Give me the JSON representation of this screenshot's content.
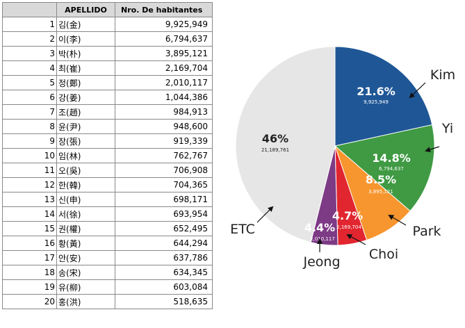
{
  "table": {
    "headers": {
      "rank": "",
      "surname": "APELLIDO",
      "population": "Nro. De habitantes"
    },
    "rows": [
      {
        "rank": "1",
        "surname": "김(金)",
        "population": "9,925,949"
      },
      {
        "rank": "2",
        "surname": "이(李)",
        "population": "6,794,637"
      },
      {
        "rank": "3",
        "surname": "박(朴)",
        "population": "3,895,121"
      },
      {
        "rank": "4",
        "surname": "최(崔)",
        "population": "2,169,704"
      },
      {
        "rank": "5",
        "surname": "정(鄭)",
        "population": "2,010,117"
      },
      {
        "rank": "6",
        "surname": "강(姜)",
        "population": "1,044,386"
      },
      {
        "rank": "7",
        "surname": "조(趙)",
        "population": "984,913"
      },
      {
        "rank": "8",
        "surname": "윤(尹)",
        "population": "948,600"
      },
      {
        "rank": "9",
        "surname": "장(張)",
        "population": "919,339"
      },
      {
        "rank": "10",
        "surname": "임(林)",
        "population": "762,767"
      },
      {
        "rank": "11",
        "surname": "오(吳)",
        "population": "706,908"
      },
      {
        "rank": "12",
        "surname": "한(韓)",
        "population": "704,365"
      },
      {
        "rank": "13",
        "surname": "신(申)",
        "population": "698,171"
      },
      {
        "rank": "14",
        "surname": "서(徐)",
        "population": "693,954"
      },
      {
        "rank": "15",
        "surname": "권(權)",
        "population": "652,495"
      },
      {
        "rank": "16",
        "surname": "황(黃)",
        "population": "644,294"
      },
      {
        "rank": "17",
        "surname": "안(安)",
        "population": "637,786"
      },
      {
        "rank": "18",
        "surname": "송(宋)",
        "population": "634,345"
      },
      {
        "rank": "19",
        "surname": "유(柳)",
        "population": "603,084"
      },
      {
        "rank": "20",
        "surname": "홍(洪)",
        "population": "518,635"
      }
    ]
  },
  "chart_data": {
    "type": "pie",
    "title": "",
    "legend": "none",
    "slices": [
      {
        "name": "Kim",
        "pct_label": "21.6%",
        "value_label": "9,925,949",
        "value": 9925949,
        "color": "#1f5796"
      },
      {
        "name": "Yi",
        "pct_label": "14.8%",
        "value_label": "6,794,637",
        "value": 6794637,
        "color": "#3f9a43"
      },
      {
        "name": "Park",
        "pct_label": "8.5%",
        "value_label": "3,895,121",
        "value": 3895121,
        "color": "#f7962e"
      },
      {
        "name": "Choi",
        "pct_label": "4.7%",
        "value_label": "2,169,704",
        "value": 2169704,
        "color": "#e12630"
      },
      {
        "name": "Jeong",
        "pct_label": "4.4%",
        "value_label": "2,010,117",
        "value": 2010117,
        "color": "#7d3a85"
      },
      {
        "name": "ETC",
        "pct_label": "46%",
        "value_label": "21,189,761",
        "value": 21189761,
        "color": "#e6e6e6"
      }
    ]
  }
}
